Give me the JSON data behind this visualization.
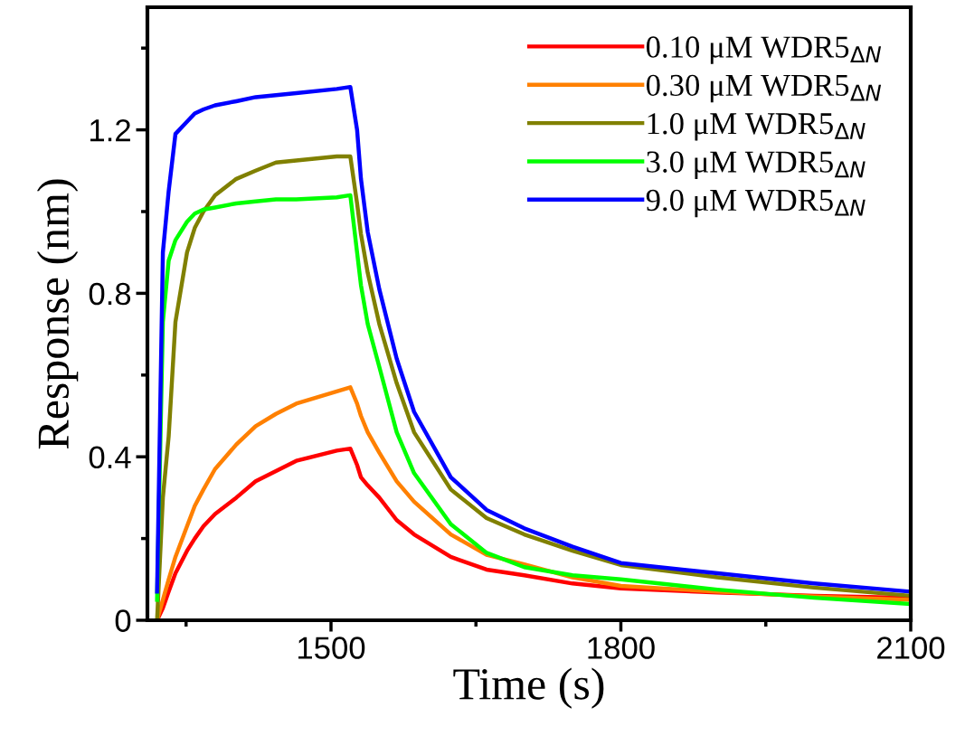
{
  "chart_data": {
    "type": "line",
    "xlabel": "Time (s)",
    "ylabel": "Response (nm)",
    "xlim": [
      1310,
      2100
    ],
    "ylim": [
      0,
      1.5
    ],
    "xticks": [
      {
        "value": 1350,
        "label": null
      },
      1500,
      {
        "value": 1650,
        "label": null
      },
      1800,
      {
        "value": 1950,
        "label": null
      },
      2100
    ],
    "yticks": [
      0,
      {
        "value": 0.2,
        "label": null
      },
      0.4,
      {
        "value": 0.6,
        "label": null
      },
      0.8,
      {
        "value": 1.0,
        "label": null
      },
      1.2,
      {
        "value": 1.4,
        "label": null
      }
    ],
    "grid": false,
    "legend": "top right",
    "marker": "none",
    "line_style": "solid",
    "x": [
      1320,
      1326,
      1332,
      1339,
      1351,
      1359,
      1368,
      1380,
      1402,
      1422,
      1443,
      1464,
      1506,
      1520,
      1527,
      1531,
      1538,
      1550,
      1568,
      1586,
      1624,
      1661,
      1700,
      1750,
      1800,
      1900,
      2000,
      2100
    ],
    "series": [
      {
        "name": "0.10 μM WDR5$_{ΔN}$",
        "color": "#ff0000",
        "values": [
          0,
          0.03,
          0.07,
          0.115,
          0.17,
          0.2,
          0.23,
          0.26,
          0.3,
          0.34,
          0.365,
          0.39,
          0.415,
          0.42,
          0.38,
          0.35,
          0.33,
          0.3,
          0.245,
          0.21,
          0.155,
          0.124,
          0.11,
          0.09,
          0.078,
          0.068,
          0.06,
          0.055
        ]
      },
      {
        "name": "0.30 μM WDR5$_{ΔN}$",
        "color": "#ff8000",
        "values": [
          0,
          0.05,
          0.1,
          0.155,
          0.23,
          0.28,
          0.32,
          0.37,
          0.43,
          0.475,
          0.505,
          0.53,
          0.56,
          0.57,
          0.53,
          0.5,
          0.46,
          0.41,
          0.34,
          0.29,
          0.21,
          0.16,
          0.137,
          0.105,
          0.084,
          0.07,
          0.058,
          0.05
        ]
      },
      {
        "name": "1.0 μM WDR5$_{ΔN}$",
        "color": "#808000",
        "values": [
          0,
          0.3,
          0.45,
          0.73,
          0.9,
          0.96,
          1.0,
          1.04,
          1.08,
          1.1,
          1.12,
          1.125,
          1.135,
          1.135,
          1.02,
          0.945,
          0.85,
          0.725,
          0.58,
          0.46,
          0.32,
          0.25,
          0.21,
          0.17,
          0.135,
          0.105,
          0.08,
          0.06
        ]
      },
      {
        "name": "3.0 μM WDR5$_{ΔN}$",
        "color": "#00ff00",
        "values": [
          0.05,
          0.73,
          0.88,
          0.93,
          0.975,
          0.995,
          1.005,
          1.01,
          1.02,
          1.025,
          1.03,
          1.03,
          1.035,
          1.04,
          0.9,
          0.82,
          0.725,
          0.62,
          0.46,
          0.36,
          0.235,
          0.165,
          0.13,
          0.11,
          0.1,
          0.075,
          0.055,
          0.04
        ]
      },
      {
        "name": "9.0 μM WDR5$_{ΔN}$",
        "color": "#0000ff",
        "values": [
          0.07,
          0.9,
          1.05,
          1.19,
          1.22,
          1.24,
          1.25,
          1.26,
          1.27,
          1.28,
          1.285,
          1.29,
          1.3,
          1.305,
          1.2,
          1.08,
          0.95,
          0.81,
          0.64,
          0.51,
          0.35,
          0.27,
          0.225,
          0.18,
          0.14,
          0.115,
          0.09,
          0.07
        ]
      }
    ]
  }
}
